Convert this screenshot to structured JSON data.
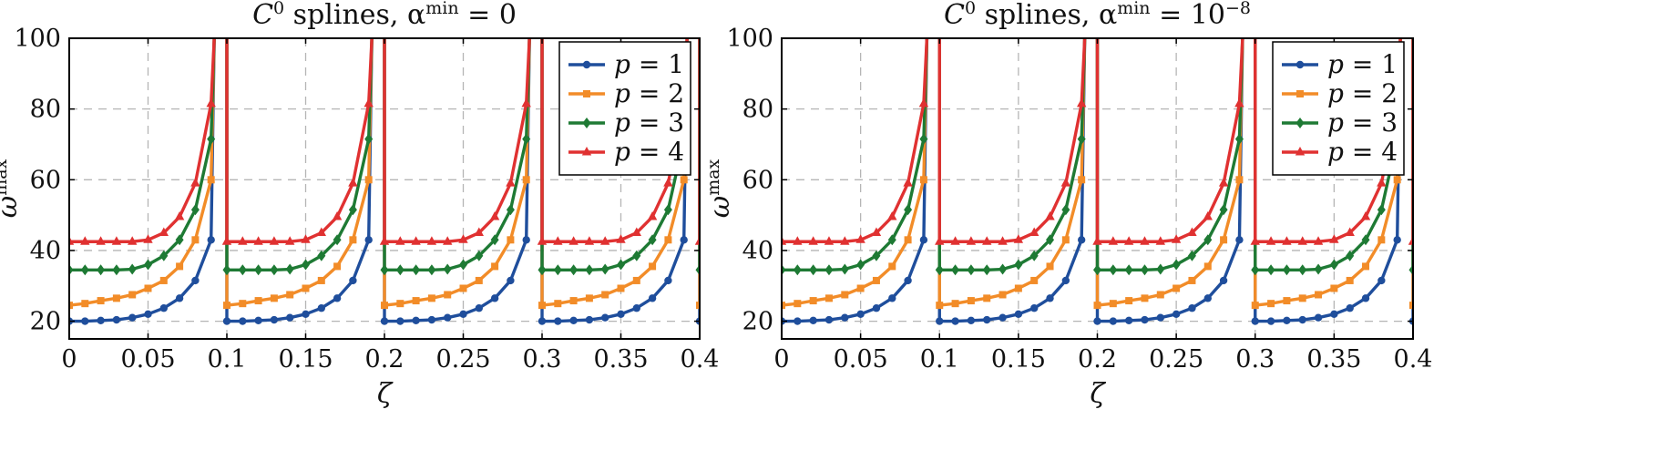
{
  "chart_data": [
    {
      "type": "line",
      "title": "C^0 splines, α^min = 0",
      "title_parts": {
        "base": "C",
        "sup": "0",
        "mid": " splines, α",
        "sup2": "min",
        "tail": " = 0"
      },
      "xlabel": "ζ",
      "ylabel": "ω^max",
      "ylabel_parts": {
        "base": "ω",
        "sup": "max"
      },
      "xlim": [
        0,
        0.4
      ],
      "ylim": [
        15,
        100
      ],
      "xticks": [
        0,
        0.05,
        0.1,
        0.15,
        0.2,
        0.25,
        0.3,
        0.35,
        0.4
      ],
      "xtick_labels": [
        "0",
        "0.05",
        "0.1",
        "0.15",
        "0.2",
        "0.25",
        "0.3",
        "0.35",
        "0.4"
      ],
      "yticks": [
        20,
        40,
        60,
        80,
        100
      ],
      "ytick_labels": [
        "20",
        "40",
        "60",
        "80",
        "100"
      ],
      "grid": true,
      "legend_position": "top-right",
      "series": [
        {
          "name": "p = 1",
          "label_var": "p",
          "label_val": "1",
          "color": "#1f4e9c",
          "marker": "circle",
          "y": [
            20,
            20,
            20.2,
            20.4,
            21,
            22,
            23.7,
            26.5,
            31.5,
            43,
            100
          ]
        },
        {
          "name": "p = 2",
          "label_var": "p",
          "label_val": "2",
          "color": "#f28c28",
          "marker": "square",
          "y": [
            24.5,
            25,
            25.8,
            26.5,
            27.5,
            29.3,
            31.5,
            35.5,
            43,
            60,
            100
          ]
        },
        {
          "name": "p = 3",
          "label_var": "p",
          "label_val": "3",
          "color": "#1e7a34",
          "marker": "diamond",
          "y": [
            34.5,
            34.5,
            34.5,
            34.5,
            34.7,
            36,
            38.5,
            43,
            51.5,
            71.5,
            100
          ]
        },
        {
          "name": "p = 4",
          "label_var": "p",
          "label_val": "4",
          "color": "#e03131",
          "marker": "triangle",
          "y": [
            42.5,
            42.5,
            42.5,
            42.5,
            42.5,
            43,
            45,
            49.5,
            59,
            81.5,
            100
          ]
        }
      ]
    },
    {
      "type": "line",
      "title": "C^0 splines, α^min = 10^-8",
      "title_parts": {
        "base": "C",
        "sup": "0",
        "mid": " splines, α",
        "sup2": "min",
        "tail": " = 10",
        "sup3": "−8"
      },
      "xlabel": "ζ",
      "ylabel": "ω^max",
      "ylabel_parts": {
        "base": "ω",
        "sup": "max"
      },
      "xlim": [
        0,
        0.4
      ],
      "ylim": [
        15,
        100
      ],
      "xticks": [
        0,
        0.05,
        0.1,
        0.15,
        0.2,
        0.25,
        0.3,
        0.35,
        0.4
      ],
      "xtick_labels": [
        "0",
        "0.05",
        "0.1",
        "0.15",
        "0.2",
        "0.25",
        "0.3",
        "0.35",
        "0.4"
      ],
      "yticks": [
        20,
        40,
        60,
        80,
        100
      ],
      "ytick_labels": [
        "20",
        "40",
        "60",
        "80",
        "100"
      ],
      "grid": true,
      "legend_position": "top-right",
      "series": [
        {
          "name": "p = 1",
          "label_var": "p",
          "label_val": "1",
          "color": "#1f4e9c",
          "marker": "circle",
          "y": [
            20,
            20,
            20.2,
            20.4,
            21,
            22,
            23.7,
            26.5,
            31.5,
            43,
            100
          ]
        },
        {
          "name": "p = 2",
          "label_var": "p",
          "label_val": "2",
          "color": "#f28c28",
          "marker": "square",
          "y": [
            24.5,
            25,
            25.8,
            26.5,
            27.5,
            29.3,
            31.5,
            35.5,
            43,
            60,
            100
          ]
        },
        {
          "name": "p = 3",
          "label_var": "p",
          "label_val": "3",
          "color": "#1e7a34",
          "marker": "diamond",
          "y": [
            34.5,
            34.5,
            34.5,
            34.5,
            34.7,
            36,
            38.5,
            43,
            51.5,
            71.5,
            100
          ]
        },
        {
          "name": "p = 4",
          "label_var": "p",
          "label_val": "4",
          "color": "#e03131",
          "marker": "triangle",
          "y": [
            42.5,
            42.5,
            42.5,
            42.5,
            42.5,
            43,
            45,
            49.5,
            59,
            81.5,
            100
          ]
        }
      ]
    }
  ],
  "period": {
    "length": 0.1,
    "step": 0.01,
    "count": 4
  }
}
